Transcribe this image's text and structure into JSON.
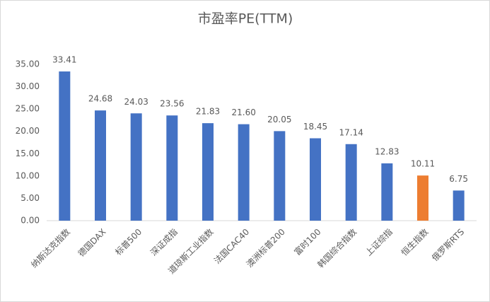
{
  "chart_data": {
    "type": "bar",
    "title": "市盈率PE(TTM)",
    "categories": [
      "纳斯达克指数",
      "德国DAX",
      "标普500",
      "深证成指",
      "道琼斯工业指数",
      "法国CAC40",
      "澳洲标普200",
      "富时100",
      "韩国综合指数",
      "上证综指",
      "恒生指数",
      "俄罗斯RTS"
    ],
    "values": [
      33.41,
      24.68,
      24.03,
      23.56,
      21.83,
      21.6,
      20.05,
      18.45,
      17.14,
      12.83,
      10.11,
      6.75
    ],
    "value_labels": [
      "33.41",
      "24.68",
      "24.03",
      "23.56",
      "21.83",
      "21.60",
      "20.05",
      "18.45",
      "17.14",
      "12.83",
      "10.11",
      "6.75"
    ],
    "colors": [
      "#4472c4",
      "#4472c4",
      "#4472c4",
      "#4472c4",
      "#4472c4",
      "#4472c4",
      "#4472c4",
      "#4472c4",
      "#4472c4",
      "#4472c4",
      "#ed7d31",
      "#4472c4"
    ],
    "ylim": [
      0,
      35
    ],
    "yticks": [
      {
        "value": 0,
        "label": "0.00"
      },
      {
        "value": 5,
        "label": "5.00"
      },
      {
        "value": 10,
        "label": "10.00"
      },
      {
        "value": 15,
        "label": "15.00"
      },
      {
        "value": 20,
        "label": "20.00"
      },
      {
        "value": 25,
        "label": "25.00"
      },
      {
        "value": 30,
        "label": "30.00"
      },
      {
        "value": 35,
        "label": "35.00"
      }
    ],
    "grid": false
  }
}
